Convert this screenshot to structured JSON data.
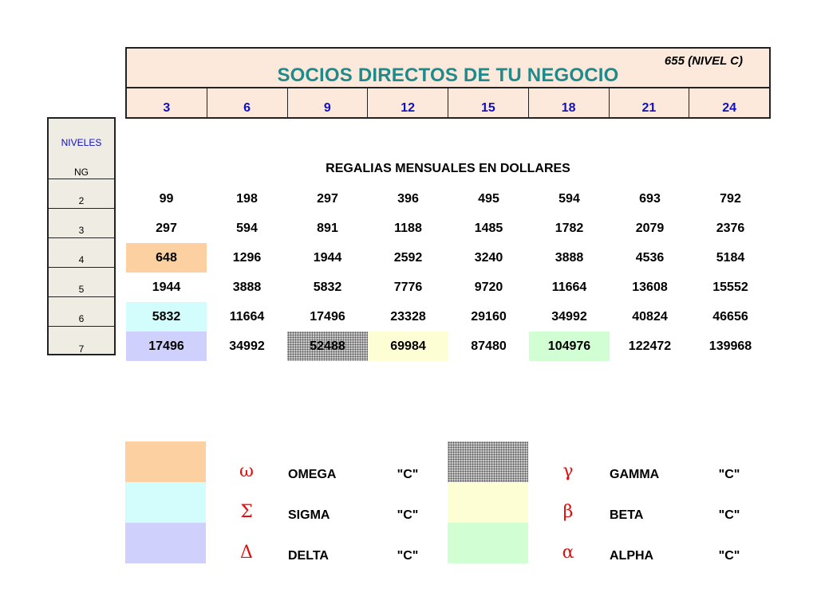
{
  "title": "SOCIOS DIRECTOS DE TU NEGOCIO",
  "title_note": "655 (NIVEL C)",
  "header_values": [
    "3",
    "6",
    "9",
    "12",
    "15",
    "18",
    "21",
    "24"
  ],
  "levels_header": {
    "line1": "NIVELES",
    "line2": "NG"
  },
  "level_labels": [
    "2",
    "3",
    "4",
    "5",
    "6",
    "7"
  ],
  "subtitle": "REGALIAS MENSUALES EN DOLLARES",
  "rows": [
    [
      "99",
      "198",
      "297",
      "396",
      "495",
      "594",
      "693",
      "792"
    ],
    [
      "297",
      "594",
      "891",
      "1188",
      "1485",
      "1782",
      "2079",
      "2376"
    ],
    [
      "648",
      "1296",
      "1944",
      "2592",
      "3240",
      "3888",
      "4536",
      "5184"
    ],
    [
      "1944",
      "3888",
      "5832",
      "7776",
      "9720",
      "11664",
      "13608",
      "15552"
    ],
    [
      "5832",
      "11664",
      "17496",
      "23328",
      "29160",
      "34992",
      "40824",
      "46656"
    ],
    [
      "17496",
      "34992",
      "52488",
      "69984",
      "87480",
      "104976",
      "122472",
      "139968"
    ]
  ],
  "highlights": [
    {
      "row": 2,
      "col": 0,
      "rank": "omega",
      "color": "#fdd0a1"
    },
    {
      "row": 4,
      "col": 0,
      "rank": "sigma",
      "color": "#d3fdfd"
    },
    {
      "row": 5,
      "col": 0,
      "rank": "delta",
      "color": "#d0d0fd"
    },
    {
      "row": 5,
      "col": 2,
      "rank": "gamma",
      "color": "dotted-gray"
    },
    {
      "row": 5,
      "col": 3,
      "rank": "beta",
      "color": "#fefed4"
    },
    {
      "row": 5,
      "col": 5,
      "rank": "alpha",
      "color": "#d2fed3"
    }
  ],
  "legend_left": [
    {
      "symbol": "ω",
      "name": "OMEGA",
      "value": "\"C\"",
      "color": "#fdd0a1"
    },
    {
      "symbol": "Σ",
      "name": "SIGMA",
      "value": "\"C\"",
      "color": "#d3fdfd"
    },
    {
      "symbol": "Δ",
      "name": "DELTA",
      "value": "\"C\"",
      "color": "#d0d0fd"
    }
  ],
  "legend_right": [
    {
      "symbol": "γ",
      "name": "GAMMA",
      "value": "\"C\"",
      "color": "dotted-gray"
    },
    {
      "symbol": "β",
      "name": "BETA",
      "value": "\"C\"",
      "color": "#fefed4"
    },
    {
      "symbol": "α",
      "name": "ALPHA",
      "value": "\"C\"",
      "color": "#d2fed3"
    }
  ],
  "colors": {
    "title_text": "#1f8a8a",
    "header_text": "#1010c0",
    "header_bg": "#fce9dc",
    "levels_bg": "#efece4",
    "symbol_color": "#e01010"
  }
}
